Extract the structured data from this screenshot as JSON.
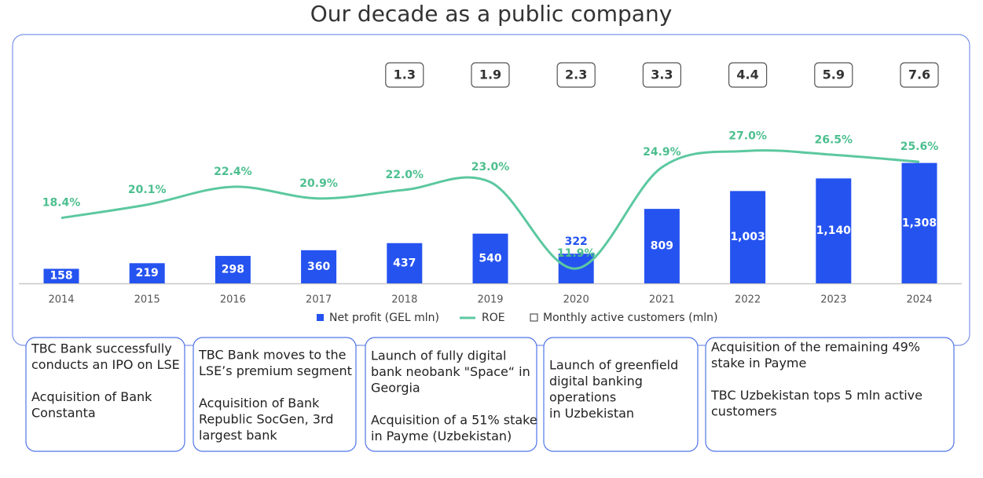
{
  "chart_data": {
    "type": "bar",
    "title": "Our decade as a public company",
    "categories": [
      "2014",
      "2015",
      "2016",
      "2017",
      "2018",
      "2019",
      "2020",
      "2021",
      "2022",
      "2023",
      "2024"
    ],
    "ylim": [
      0,
      2200
    ],
    "y2lim": [
      10,
      36
    ],
    "legend": "bottom",
    "series": [
      {
        "name": "Net profit (GEL mln)",
        "type": "bar",
        "color": "#2553f0",
        "values": [
          158,
          219,
          298,
          360,
          437,
          540,
          322,
          809,
          1003,
          1140,
          1308
        ],
        "value_labels": [
          "158",
          "219",
          "298",
          "360",
          "437",
          "540",
          "322",
          "809",
          "1,003",
          "1,140",
          "1,308"
        ]
      },
      {
        "name": "ROE",
        "type": "line",
        "axis": "y2",
        "color": "#5cc8a0",
        "values": [
          18.4,
          20.1,
          22.4,
          20.9,
          22.0,
          23.0,
          11.9,
          24.9,
          27.0,
          26.5,
          25.6
        ],
        "value_labels": [
          "18.4%",
          "20.1%",
          "22.4%",
          "20.9%",
          "22.0%",
          "23.0%",
          "11.9%",
          "24.9%",
          "27.0%",
          "26.5%",
          "25.6%"
        ]
      },
      {
        "name": "Monthly active customers (mln)",
        "type": "box",
        "color": "#555555",
        "values": [
          null,
          null,
          null,
          null,
          1.3,
          1.9,
          2.3,
          3.3,
          4.4,
          5.9,
          7.6
        ]
      }
    ]
  },
  "milestones": [
    {
      "paragraphs": [
        [
          "TBC Bank successfully",
          "conducts an IPO on LSE"
        ],
        [
          "Acquisition of Bank",
          "Constanta"
        ]
      ]
    },
    {
      "paragraphs": [
        [
          "TBC Bank moves to the",
          "LSE’s premium segment"
        ],
        [
          "Acquisition of Bank",
          "Republic SocGen, 3rd",
          "largest bank"
        ]
      ]
    },
    {
      "paragraphs": [
        [
          "Launch of fully digital",
          "bank neobank  \"Space“ in",
          "Georgia"
        ],
        [
          "Acquisition of a 51% stake",
          "in Payme (Uzbekistan)"
        ]
      ]
    },
    {
      "paragraphs": [
        [
          "Launch of greenfield",
          "digital banking",
          "operations",
          "in Uzbekistan"
        ]
      ]
    },
    {
      "paragraphs": [
        [
          "Acquisition of the remaining 49%",
          "stake in Payme"
        ],
        [
          "TBC Uzbekistan tops 5 mln active",
          "customers"
        ]
      ]
    }
  ]
}
